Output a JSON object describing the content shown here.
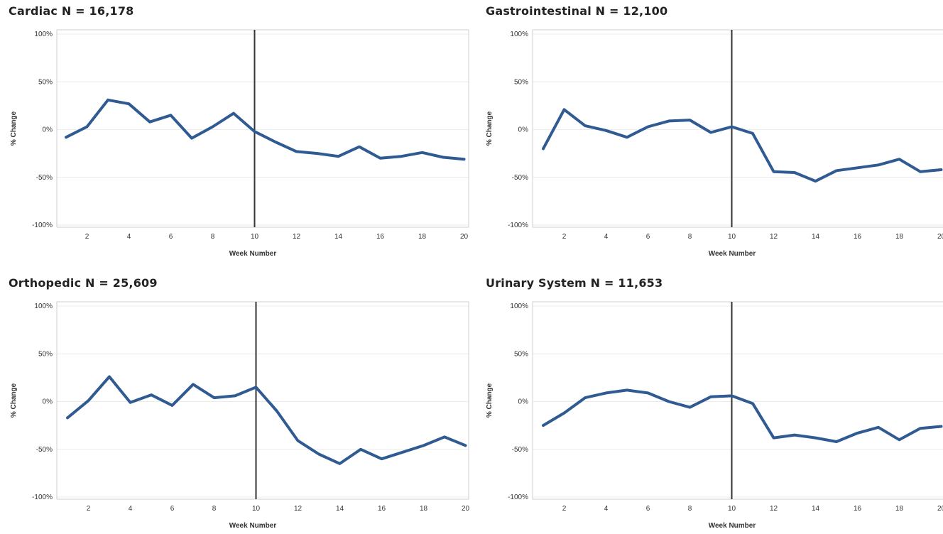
{
  "chart_data": [
    {
      "type": "line",
      "title": "Cardiac N = 16,178",
      "xlabel": "Week Number",
      "ylabel": "% Change",
      "xlim": [
        0.5,
        20
      ],
      "ylim": [
        -100,
        100
      ],
      "yticks": [
        "100%",
        "50%",
        "0%",
        "-50%",
        "-100%"
      ],
      "xticks": [
        2,
        4,
        6,
        8,
        10,
        12,
        14,
        16,
        18,
        20
      ],
      "marker_x": 10,
      "x": [
        1,
        2,
        3,
        4,
        5,
        6,
        7,
        8,
        9,
        10,
        11,
        12,
        13,
        14,
        15,
        16,
        17,
        18,
        19,
        20
      ],
      "series": [
        {
          "values": [
            -8,
            3,
            31,
            27,
            8,
            15,
            -9,
            3,
            17,
            -2,
            -13,
            -23,
            -25,
            -28,
            -18,
            -30,
            -28,
            -24,
            -29,
            -31
          ]
        }
      ]
    },
    {
      "type": "line",
      "title": "Gastrointestinal  N = 12,100",
      "xlabel": "Week Number",
      "ylabel": "% Change",
      "xlim": [
        0.5,
        20
      ],
      "ylim": [
        -100,
        100
      ],
      "yticks": [
        "100%",
        "50%",
        "0%",
        "-50%",
        "-100%"
      ],
      "xticks": [
        2,
        4,
        6,
        8,
        10,
        12,
        14,
        16,
        18,
        20
      ],
      "marker_x": 10,
      "x": [
        1,
        2,
        3,
        4,
        5,
        6,
        7,
        8,
        9,
        10,
        11,
        12,
        13,
        14,
        15,
        16,
        17,
        18,
        19,
        20
      ],
      "series": [
        {
          "values": [
            -20,
            21,
            4,
            -1,
            -8,
            3,
            9,
            10,
            -3,
            3,
            -4,
            -44,
            -45,
            -54,
            -43,
            -40,
            -37,
            -31,
            -44,
            -42
          ]
        }
      ]
    },
    {
      "type": "line",
      "title": "Orthopedic N = 25,609",
      "xlabel": "Week Number",
      "ylabel": "% Change",
      "xlim": [
        0.5,
        20
      ],
      "ylim": [
        -100,
        100
      ],
      "yticks": [
        "100%",
        "50%",
        "0%",
        "-50%",
        "-100%"
      ],
      "xticks": [
        2,
        4,
        6,
        8,
        10,
        12,
        14,
        16,
        18,
        20
      ],
      "marker_x": 10,
      "x": [
        1,
        2,
        3,
        4,
        5,
        6,
        7,
        8,
        9,
        10,
        11,
        12,
        13,
        14,
        15,
        16,
        17,
        18,
        19,
        20
      ],
      "series": [
        {
          "values": [
            -17,
            1,
            26,
            -1,
            7,
            -4,
            18,
            4,
            6,
            15,
            -10,
            -41,
            -55,
            -65,
            -50,
            -60,
            -53,
            -46,
            -37,
            -46
          ]
        }
      ]
    },
    {
      "type": "line",
      "title": "Urinary System N = 11,653",
      "xlabel": "Week Number",
      "ylabel": "% Change",
      "xlim": [
        0.5,
        20
      ],
      "ylim": [
        -100,
        100
      ],
      "yticks": [
        "100%",
        "50%",
        "0%",
        "-50%",
        "-100%"
      ],
      "xticks": [
        2,
        4,
        6,
        8,
        10,
        12,
        14,
        16,
        18,
        20
      ],
      "marker_x": 10,
      "x": [
        1,
        2,
        3,
        4,
        5,
        6,
        7,
        8,
        9,
        10,
        11,
        12,
        13,
        14,
        15,
        16,
        17,
        18,
        19,
        20
      ],
      "series": [
        {
          "values": [
            -25,
            -12,
            4,
            9,
            12,
            9,
            0,
            -6,
            5,
            6,
            -2,
            -38,
            -35,
            -38,
            -42,
            -33,
            -27,
            -40,
            -28,
            -26
          ]
        }
      ]
    }
  ],
  "colors": {
    "line": "#2f5a92",
    "marker_line": "#333333",
    "gridline": "#ececec",
    "frame": "#cfcfcf"
  }
}
